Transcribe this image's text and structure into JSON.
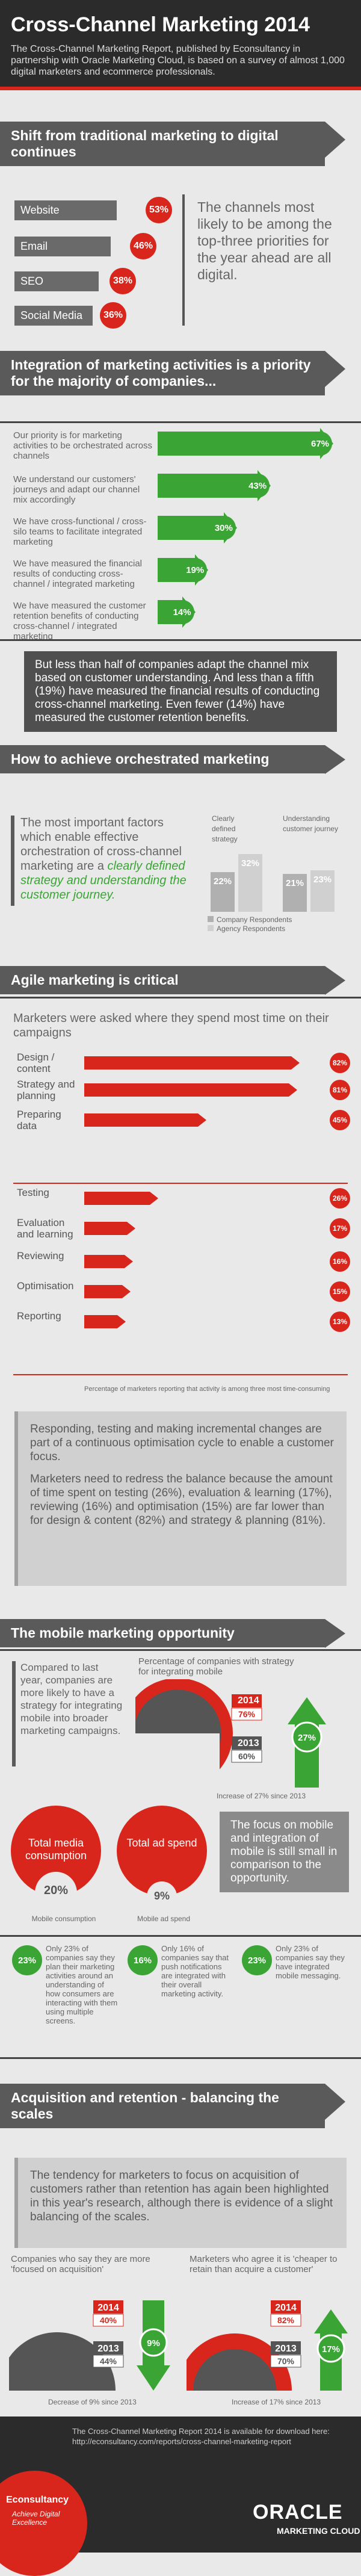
{
  "header": {
    "title": "Cross-Channel Marketing 2014",
    "intro": "The Cross-Channel Marketing Report, published by Econsultancy in partnership with Oracle Marketing Cloud, is based on a survey of almost 1,000 digital marketers and ecommerce professionals."
  },
  "s1": {
    "heading": "Shift from traditional marketing to digital continues",
    "items": [
      {
        "label": "Website",
        "pct": "53%"
      },
      {
        "label": "Email",
        "pct": "46%"
      },
      {
        "label": "SEO",
        "pct": "38%"
      },
      {
        "label": "Social Media",
        "pct": "36%"
      }
    ],
    "callout": "The channels most likely to be among the top-three priorities for the year ahead are all digital."
  },
  "s2": {
    "heading": "Integration of marketing activities is a priority for the majority of companies...",
    "rows": [
      {
        "label": "Our priority is for marketing activities to be orchestrated across channels",
        "pct": "67%"
      },
      {
        "label": "We understand our customers' journeys and adapt our channel mix accordingly",
        "pct": "43%"
      },
      {
        "label": "We have cross-functional / cross-silo teams to facilitate integrated marketing",
        "pct": "30%"
      },
      {
        "label": "We have measured the financial results of conducting cross-channel / integrated marketing",
        "pct": "19%"
      },
      {
        "label": "We have measured the customer retention benefits of conducting cross-channel / integrated marketing",
        "pct": "14%"
      }
    ],
    "note": "But less than half of companies adapt the channel mix based on customer understanding. And less than a fifth (19%) have measured the financial results of conducting cross-channel marketing. Even fewer (14%) have measured the customer retention benefits."
  },
  "s3": {
    "heading": "How to achieve orchestrated marketing",
    "text_a": "The most important factors which enable effective orchestration of cross-channel marketing are a ",
    "text_b": "clearly defined strategy and understanding the customer journey.",
    "col1": "Clearly defined strategy",
    "col2": "Understanding customer journey",
    "legend1": "Company Respondents",
    "legend2": "Agency Respondents"
  },
  "s4": {
    "heading": "Agile marketing is critical",
    "question": "Marketers were asked where they spend most time on their campaigns",
    "footnote": "Percentage of marketers reporting that activity is among three most time-consuming",
    "quote1": "Responding, testing and making incremental changes are part of a continuous optimisation cycle to enable a customer focus.",
    "quote2": "Marketers need to redress the balance because the amount of time spent on testing (26%), evaluation & learning (17%), reviewing (16%) and optimisation (15%) are far lower than for design & content (82%) and strategy & planning (81%)."
  },
  "s5": {
    "heading": "The mobile marketing opportunity",
    "text": "Compared to last year, companies are more likely to have a strategy for integrating mobile into broader marketing campaigns.",
    "chart_title": "Percentage of companies with strategy for integrating mobile",
    "y2014": "2014",
    "v2014": "76%",
    "y2013": "2013",
    "v2013": "60%",
    "increase": "27%",
    "increase_note": "Increase of 27% since 2013",
    "spend_box1": "Total media consumption",
    "spend_box2": "Total ad spend",
    "spend_pct": "20%",
    "spend_pct2": "9%",
    "spend_lbl1": "Mobile consumption",
    "spend_lbl2": "Mobile ad spend",
    "focus_text": "The focus on mobile and integration of mobile is still small in comparison to the opportunity.",
    "stat1_pct": "23%",
    "stat1": "Only 23% of companies say they plan their marketing activities around an understanding of how consumers are interacting with them using multiple screens.",
    "stat2_pct": "16%",
    "stat2": "Only 16% of companies say that push notifications are integrated with their overall marketing activity.",
    "stat3_pct": "23%",
    "stat3": "Only 23% of companies say they have integrated mobile messaging."
  },
  "s6": {
    "heading": "Acquisition and retention - balancing the scales",
    "quote": "The tendency for marketers to focus on acquisition of customers rather than retention has again been highlighted in this year's research, although there is evidence of a slight balancing of the scales.",
    "left_title": "Companies who say they are more 'focused on acquisition'",
    "right_title": "Marketers who agree it is 'cheaper to retain than acquire a customer'",
    "left_y2014": "2014",
    "left_v2014": "40%",
    "left_y2013": "2013",
    "left_v2013": "44%",
    "left_change": "9%",
    "left_note": "Decrease of 9% since 2013",
    "right_y2014": "2014",
    "right_v2014": "82%",
    "right_y2013": "2013",
    "right_v2013": "70%",
    "right_change": "17%",
    "right_note": "Increase of 17% since 2013"
  },
  "footer": {
    "text": "The Cross-Channel Marketing Report 2014 is available for download here: http://econsultancy.com/reports/cross-channel-marketing-report",
    "logo_left": "Econsultancy",
    "tagline": "Achieve Digital Excellence",
    "logo_right": "ORACLE",
    "logo_right_sub": "MARKETING CLOUD"
  },
  "colors": {
    "red": "#d9261c",
    "green": "#3aa535",
    "dark": "#5a5a5a"
  },
  "chart_data": [
    {
      "type": "bar",
      "categories": [
        "Website",
        "Email",
        "SEO",
        "Social Media"
      ],
      "values": [
        53,
        46,
        38,
        36
      ],
      "ylim": [
        0,
        100
      ]
    },
    {
      "type": "bar",
      "categories": [
        "Orchestrated across channels",
        "Understand customer journeys",
        "Cross-functional teams",
        "Measured financial results",
        "Measured retention benefits"
      ],
      "values": [
        67,
        43,
        30,
        19,
        14
      ],
      "ylim": [
        0,
        100
      ]
    },
    {
      "type": "bar",
      "categories": [
        "Clearly defined strategy",
        "Understanding customer journey"
      ],
      "series": [
        {
          "name": "Company Respondents",
          "values": [
            22,
            21
          ]
        },
        {
          "name": "Agency Respondents",
          "values": [
            32,
            23
          ]
        }
      ],
      "ylim": [
        0,
        40
      ]
    },
    {
      "type": "bar",
      "categories": [
        "Design / content",
        "Strategy and planning",
        "Preparing data",
        "Testing",
        "Evaluation and learning",
        "Reviewing",
        "Optimisation",
        "Reporting"
      ],
      "values": [
        82,
        81,
        45,
        26,
        17,
        16,
        15,
        13
      ],
      "ylim": [
        0,
        100
      ]
    },
    {
      "type": "bar",
      "categories": [
        "2013",
        "2014"
      ],
      "values": [
        60,
        76
      ],
      "ylim": [
        0,
        100
      ]
    },
    {
      "type": "bar",
      "categories": [
        "2013",
        "2014"
      ],
      "values": [
        44,
        40
      ],
      "ylim": [
        0,
        100
      ]
    },
    {
      "type": "bar",
      "categories": [
        "2013",
        "2014"
      ],
      "values": [
        70,
        82
      ],
      "ylim": [
        0,
        100
      ]
    }
  ]
}
